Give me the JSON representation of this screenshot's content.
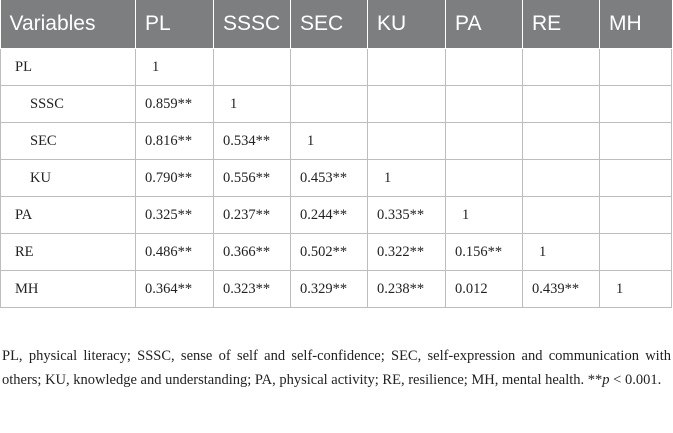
{
  "table": {
    "headers": [
      "Variables",
      "PL",
      "SSSC",
      "SEC",
      "KU",
      "PA",
      "RE",
      "MH"
    ],
    "rows": [
      {
        "label": "PL",
        "indent": false,
        "cells": [
          "1",
          "",
          "",
          "",
          "",
          "",
          ""
        ]
      },
      {
        "label": "SSSC",
        "indent": true,
        "cells": [
          "0.859**",
          "1",
          "",
          "",
          "",
          "",
          ""
        ]
      },
      {
        "label": "SEC",
        "indent": true,
        "cells": [
          "0.816**",
          "0.534**",
          "1",
          "",
          "",
          "",
          ""
        ]
      },
      {
        "label": "KU",
        "indent": true,
        "cells": [
          "0.790**",
          "0.556**",
          "0.453**",
          "1",
          "",
          "",
          ""
        ]
      },
      {
        "label": "PA",
        "indent": false,
        "cells": [
          "0.325**",
          "0.237**",
          "0.244**",
          "0.335**",
          "1",
          "",
          ""
        ]
      },
      {
        "label": "RE",
        "indent": false,
        "cells": [
          "0.486**",
          "0.366**",
          "0.502**",
          "0.322**",
          "0.156**",
          "1",
          ""
        ]
      },
      {
        "label": "MH",
        "indent": false,
        "cells": [
          "0.364**",
          "0.323**",
          "0.329**",
          "0.238**",
          "0.012",
          "0.439**",
          "1"
        ]
      }
    ]
  },
  "footnote": {
    "text": "PL, physical literacy; SSSC, sense of self and self-confidence; SEC, self-expression and communication with others; KU, knowledge and understanding; PA, physical activity; RE, resilience; MH, mental health. **",
    "p_symbol": "p",
    "p_rest": " < 0.001."
  }
}
